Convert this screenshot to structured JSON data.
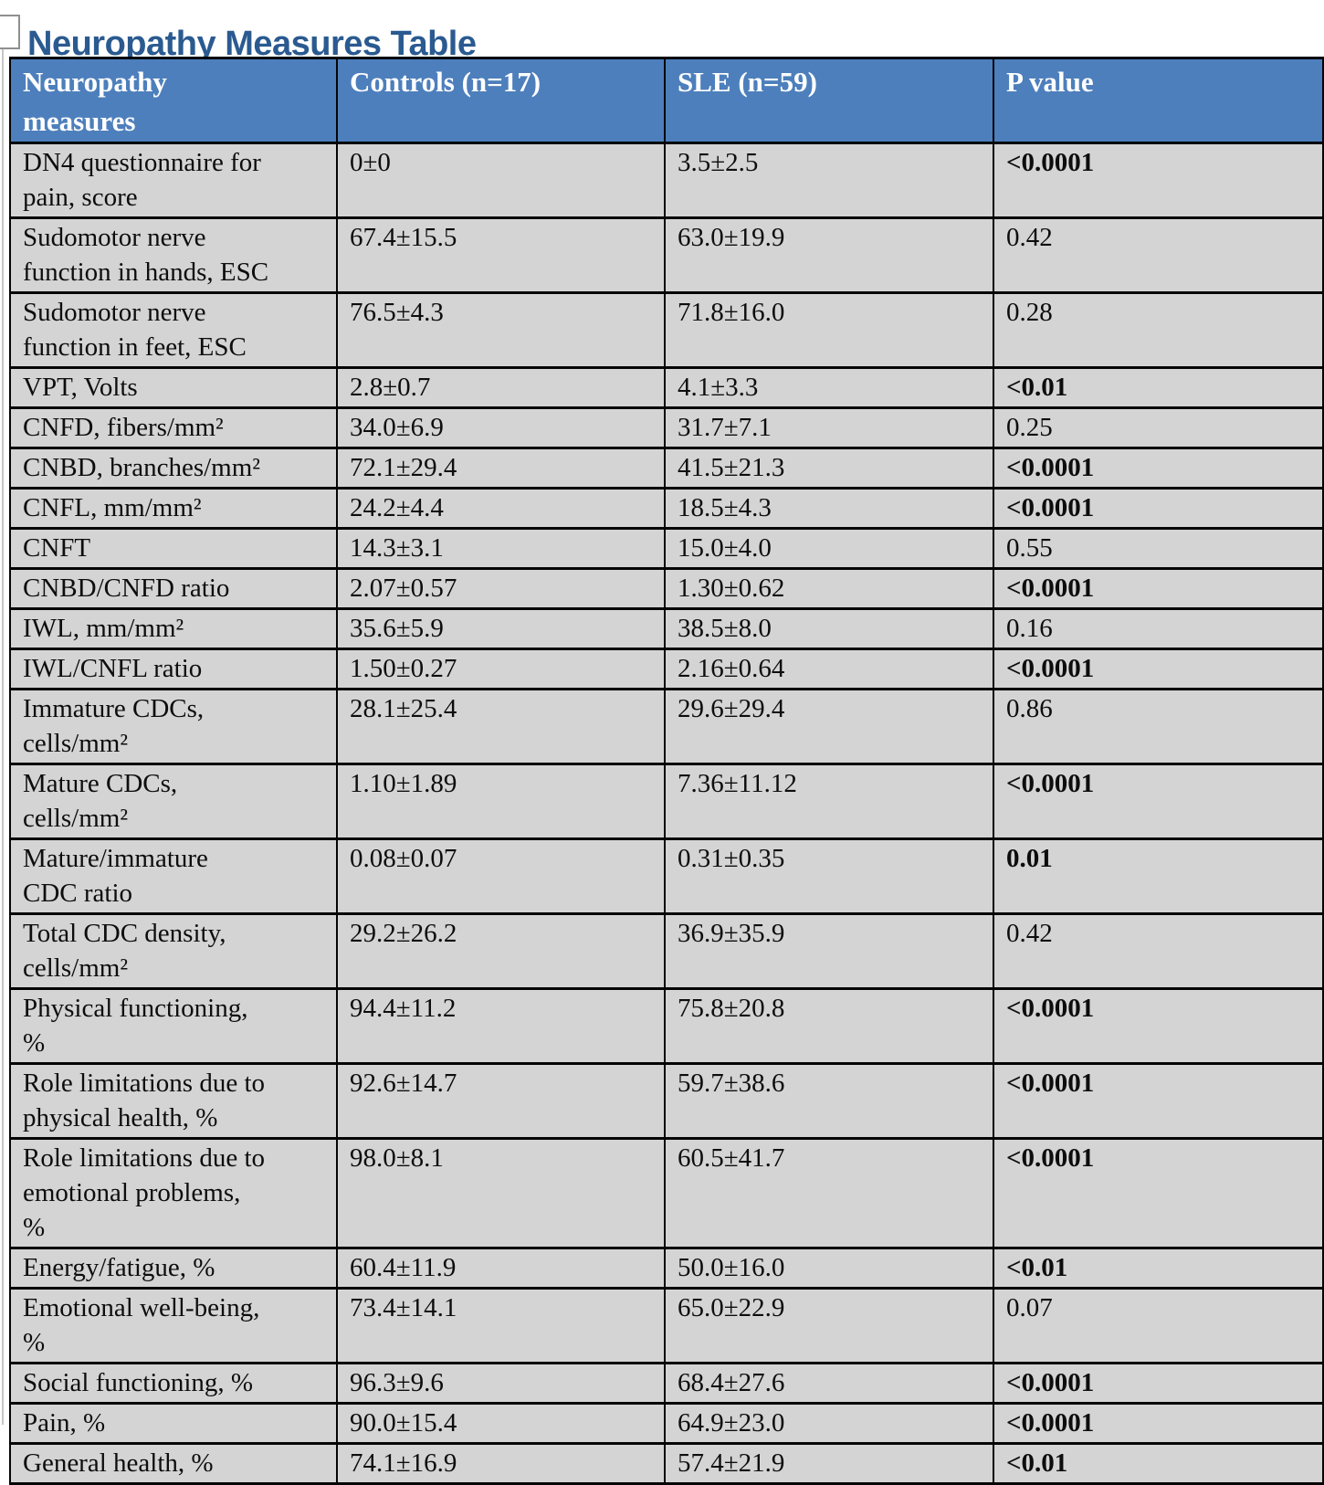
{
  "page": {
    "title": "Neuropathy Measures Table"
  },
  "colors": {
    "title_text": "#2a5a90",
    "header_bg": "#4d7fbc",
    "header_text": "#ffffff",
    "body_bg": "#d4d4d4",
    "border": "#050505"
  },
  "table": {
    "columns": [
      "Neuropathy\nmeasures",
      "Controls (n=17)",
      "SLE (n=59)",
      "P value"
    ],
    "rows": [
      {
        "measure": "DN4 questionnaire for\npain, score",
        "controls": "0±0",
        "sle": "3.5±2.5",
        "p": "<0.0001",
        "p_bold": true
      },
      {
        "measure": "Sudomotor nerve\nfunction in hands, ESC",
        "controls": "67.4±15.5",
        "sle": "63.0±19.9",
        "p": "0.42",
        "p_bold": false
      },
      {
        "measure": "Sudomotor nerve\nfunction in feet, ESC",
        "controls": "76.5±4.3",
        "sle": "71.8±16.0",
        "p": "0.28",
        "p_bold": false
      },
      {
        "measure": "VPT, Volts",
        "controls": "2.8±0.7",
        "sle": "4.1±3.3",
        "p": "<0.01",
        "p_bold": true
      },
      {
        "measure": "CNFD, fibers/mm²",
        "controls": "34.0±6.9",
        "sle": "31.7±7.1",
        "p": "0.25",
        "p_bold": false
      },
      {
        "measure": "CNBD, branches/mm²",
        "controls": "72.1±29.4",
        "sle": "41.5±21.3",
        "p": "<0.0001",
        "p_bold": true
      },
      {
        "measure": "CNFL, mm/mm²",
        "controls": "24.2±4.4",
        "sle": "18.5±4.3",
        "p": "<0.0001",
        "p_bold": true
      },
      {
        "measure": "CNFT",
        "controls": "14.3±3.1",
        "sle": "15.0±4.0",
        "p": "0.55",
        "p_bold": false
      },
      {
        "measure": "CNBD/CNFD ratio",
        "controls": "2.07±0.57",
        "sle": "1.30±0.62",
        "p": "<0.0001",
        "p_bold": true
      },
      {
        "measure": "IWL, mm/mm²",
        "controls": "35.6±5.9",
        "sle": "38.5±8.0",
        "p": "0.16",
        "p_bold": false
      },
      {
        "measure": "IWL/CNFL ratio",
        "controls": "1.50±0.27",
        "sle": "2.16±0.64",
        "p": "<0.0001",
        "p_bold": true
      },
      {
        "measure": "Immature CDCs,\ncells/mm²",
        "controls": "28.1±25.4",
        "sle": "29.6±29.4",
        "p": "0.86",
        "p_bold": false
      },
      {
        "measure": "Mature CDCs,\ncells/mm²",
        "controls": "1.10±1.89",
        "sle": "7.36±11.12",
        "p": "<0.0001",
        "p_bold": true
      },
      {
        "measure": "Mature/immature\nCDC ratio",
        "controls": "0.08±0.07",
        "sle": "0.31±0.35",
        "p": "0.01",
        "p_bold": true
      },
      {
        "measure": "Total CDC density,\ncells/mm²",
        "controls": "29.2±26.2",
        "sle": "36.9±35.9",
        "p": "0.42",
        "p_bold": false
      },
      {
        "measure": "Physical functioning,\n%",
        "controls": "94.4±11.2",
        "sle": "75.8±20.8",
        "p": "<0.0001",
        "p_bold": true
      },
      {
        "measure": "Role limitations due to\nphysical health, %",
        "controls": "92.6±14.7",
        "sle": "59.7±38.6",
        "p": "<0.0001",
        "p_bold": true
      },
      {
        "measure": "Role limitations due to\nemotional problems,\n%",
        "controls": "98.0±8.1",
        "sle": "60.5±41.7",
        "p": "<0.0001",
        "p_bold": true
      },
      {
        "measure": "Energy/fatigue, %",
        "controls": "60.4±11.9",
        "sle": "50.0±16.0",
        "p": "<0.01",
        "p_bold": true
      },
      {
        "measure": "Emotional well-being,\n%",
        "controls": "73.4±14.1",
        "sle": "65.0±22.9",
        "p": "0.07",
        "p_bold": false
      },
      {
        "measure": "Social functioning, %",
        "controls": "96.3±9.6",
        "sle": "68.4±27.6",
        "p": "<0.0001",
        "p_bold": true
      },
      {
        "measure": "Pain, %",
        "controls": "90.0±15.4",
        "sle": "64.9±23.0",
        "p": "<0.0001",
        "p_bold": true
      },
      {
        "measure": "General health, %",
        "controls": "74.1±16.9",
        "sle": "57.4±21.9",
        "p": "<0.01",
        "p_bold": true
      }
    ]
  }
}
